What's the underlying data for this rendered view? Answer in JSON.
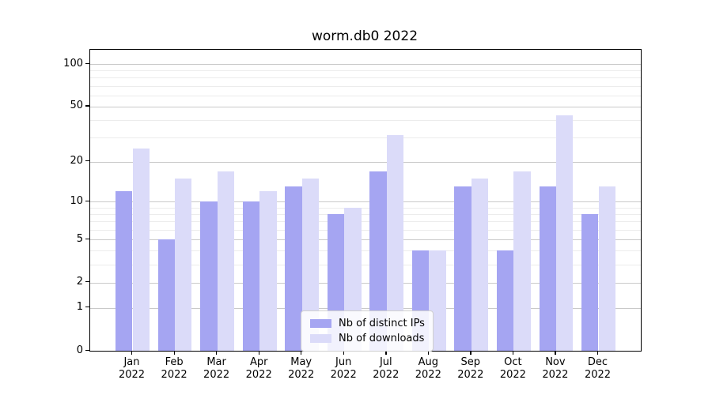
{
  "chart_data": {
    "type": "bar",
    "title": "worm.db0 2022",
    "categories": [
      "Jan",
      "Feb",
      "Mar",
      "Apr",
      "May",
      "Jun",
      "Jul",
      "Aug",
      "Sep",
      "Oct",
      "Nov",
      "Dec"
    ],
    "category_year": "2022",
    "series": [
      {
        "name": "Nb of distinct IPs",
        "color": "#a5a5f2",
        "values": [
          12,
          5,
          10,
          10,
          13,
          8,
          17,
          4,
          13,
          4,
          13,
          8
        ]
      },
      {
        "name": "Nb of downloads",
        "color": "#dbdbf9",
        "values": [
          25,
          15,
          17,
          12,
          15,
          9,
          31,
          4,
          15,
          17,
          43,
          13
        ]
      }
    ],
    "yscale": "log1p",
    "ylim": [
      0,
      126
    ],
    "yticks": [
      0,
      1,
      2,
      5,
      10,
      20,
      50,
      100
    ],
    "minor_yticks": [
      3,
      4,
      6,
      7,
      8,
      9,
      30,
      40,
      60,
      70,
      80,
      90
    ],
    "grid": true,
    "legend_position": "lower-center",
    "bar_group_layout": "side-by-side"
  },
  "colors": {
    "major_grid": "#c9c9c9",
    "minor_grid": "#ececec",
    "spine": "#000000",
    "background": "#ffffff"
  }
}
